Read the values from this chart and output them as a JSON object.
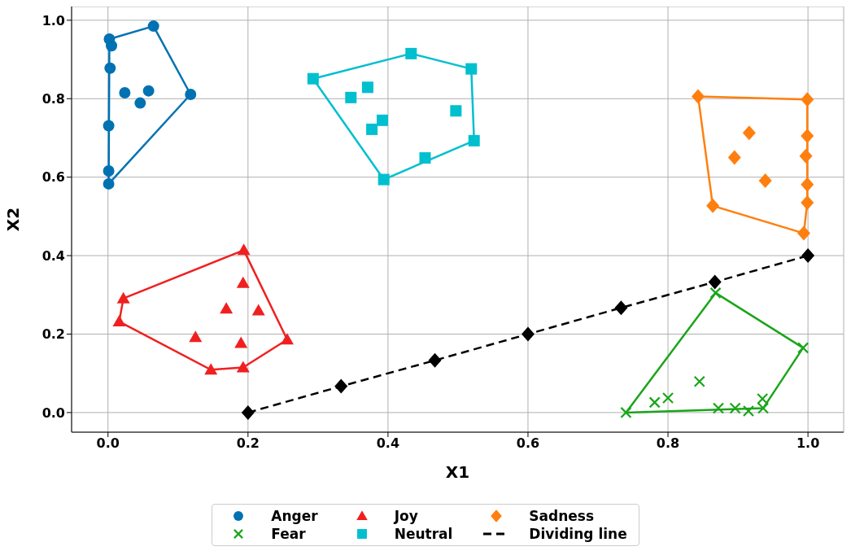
{
  "chart_data": {
    "type": "scatter",
    "xlabel": "X1",
    "ylabel": "X2",
    "xlim": [
      -0.052,
      1.051
    ],
    "ylim": [
      -0.05,
      1.035
    ],
    "xticks": [
      {
        "value": 0,
        "label": "0.0"
      },
      {
        "value": 0.2,
        "label": "0.2"
      },
      {
        "value": 0.4,
        "label": "0.4"
      },
      {
        "value": 0.6,
        "label": "0.6"
      },
      {
        "value": 0.8,
        "label": "0.8"
      },
      {
        "value": 1,
        "label": "1.0"
      }
    ],
    "yticks": [
      {
        "value": 0,
        "label": "0.0"
      },
      {
        "value": 0.2,
        "label": "0.2"
      },
      {
        "value": 0.4,
        "label": "0.4"
      },
      {
        "value": 0.6,
        "label": "0.6"
      },
      {
        "value": 0.8,
        "label": "0.8"
      },
      {
        "value": 1,
        "label": "1.0"
      }
    ],
    "grid": true,
    "legend": "bottom",
    "series": [
      {
        "name": "Anger",
        "type": "scatter",
        "marker": "circle",
        "color": "#0072b2",
        "x": [
          0.002,
          0.005,
          0.003,
          0.065,
          0.024,
          0.058,
          0.046,
          0.118,
          0.001,
          0.001,
          0.001
        ],
        "values": [
          0.952,
          0.935,
          0.878,
          0.985,
          0.815,
          0.82,
          0.789,
          0.811,
          0.731,
          0.616,
          0.583
        ]
      },
      {
        "name": "Fear",
        "type": "scatter",
        "marker": "cross",
        "color": "#1aa51a",
        "x": [
          0.74,
          0.868,
          0.993,
          0.845,
          0.781,
          0.8,
          0.872,
          0.896,
          0.915,
          0.935,
          0.936
        ],
        "values": [
          0.0,
          0.305,
          0.165,
          0.079,
          0.026,
          0.037,
          0.011,
          0.011,
          0.004,
          0.035,
          0.011
        ]
      },
      {
        "name": "Joy",
        "type": "scatter",
        "marker": "triangle",
        "color": "#f02020",
        "x": [
          0.194,
          0.193,
          0.022,
          0.169,
          0.215,
          0.016,
          0.125,
          0.19,
          0.256,
          0.147,
          0.193
        ],
        "values": [
          0.414,
          0.33,
          0.291,
          0.265,
          0.26,
          0.232,
          0.192,
          0.177,
          0.186,
          0.109,
          0.115
        ]
      },
      {
        "name": "Neutral",
        "type": "scatter",
        "marker": "square",
        "color": "#00bfcf",
        "x": [
          0.293,
          0.433,
          0.519,
          0.347,
          0.371,
          0.377,
          0.392,
          0.497,
          0.523,
          0.453,
          0.394
        ],
        "values": [
          0.851,
          0.915,
          0.876,
          0.803,
          0.829,
          0.722,
          0.745,
          0.769,
          0.693,
          0.649,
          0.594
        ]
      },
      {
        "name": "Sadness",
        "type": "scatter",
        "marker": "diamond",
        "color": "#ff7f0e",
        "x": [
          0.843,
          0.999,
          0.916,
          0.895,
          0.999,
          0.997,
          0.939,
          0.999,
          0.999,
          0.864,
          0.994
        ],
        "values": [
          0.806,
          0.798,
          0.713,
          0.65,
          0.705,
          0.654,
          0.591,
          0.581,
          0.535,
          0.527,
          0.457
        ]
      },
      {
        "name": "Dividing line",
        "type": "line",
        "marker": "diamond",
        "line_style": "dashed",
        "color": "#000000",
        "x": [
          0.2,
          0.333,
          0.467,
          0.6,
          0.733,
          0.867,
          1.0
        ],
        "values": [
          0,
          0.067,
          0.133,
          0.2,
          0.267,
          0.333,
          0.4
        ]
      },
      {
        "type": "line",
        "marker": "none",
        "line_style": "solid",
        "color": "#0072b2",
        "x": [
          0.001,
          0.002,
          0.065,
          0.118
        ],
        "values": [
          0.583,
          0.952,
          0.985,
          0.811
        ]
      },
      {
        "type": "line",
        "marker": "none",
        "line_style": "solid",
        "color": "#0072b2",
        "x": [
          0.001,
          0.118
        ],
        "values": [
          0.583,
          0.811
        ]
      },
      {
        "type": "line",
        "marker": "none",
        "line_style": "solid",
        "color": "#1aa51a",
        "x": [
          0.74,
          0.868,
          0.993
        ],
        "values": [
          0.0,
          0.305,
          0.165
        ]
      },
      {
        "type": "line",
        "marker": "none",
        "line_style": "solid",
        "color": "#1aa51a",
        "x": [
          0.74,
          0.936,
          0.993
        ],
        "values": [
          0.0,
          0.011,
          0.165
        ]
      },
      {
        "type": "line",
        "marker": "none",
        "line_style": "solid",
        "color": "#f02020",
        "x": [
          0.016,
          0.022,
          0.194,
          0.256
        ],
        "values": [
          0.232,
          0.291,
          0.414,
          0.186
        ]
      },
      {
        "type": "line",
        "marker": "none",
        "line_style": "solid",
        "color": "#f02020",
        "x": [
          0.016,
          0.147,
          0.193,
          0.256
        ],
        "values": [
          0.232,
          0.109,
          0.115,
          0.186
        ]
      },
      {
        "type": "line",
        "marker": "none",
        "line_style": "solid",
        "color": "#00bfcf",
        "x": [
          0.293,
          0.433,
          0.519,
          0.523
        ],
        "values": [
          0.851,
          0.915,
          0.876,
          0.693
        ]
      },
      {
        "type": "line",
        "marker": "none",
        "line_style": "solid",
        "color": "#00bfcf",
        "x": [
          0.293,
          0.394,
          0.523
        ],
        "values": [
          0.851,
          0.594,
          0.693
        ]
      },
      {
        "type": "line",
        "marker": "none",
        "line_style": "solid",
        "color": "#ff7f0e",
        "x": [
          0.843,
          0.999
        ],
        "values": [
          0.806,
          0.798
        ]
      },
      {
        "type": "line",
        "marker": "none",
        "line_style": "solid",
        "color": "#ff7f0e",
        "x": [
          0.843,
          0.864,
          0.994,
          0.999,
          0.999
        ],
        "values": [
          0.806,
          0.527,
          0.457,
          0.535,
          0.798
        ]
      }
    ]
  }
}
